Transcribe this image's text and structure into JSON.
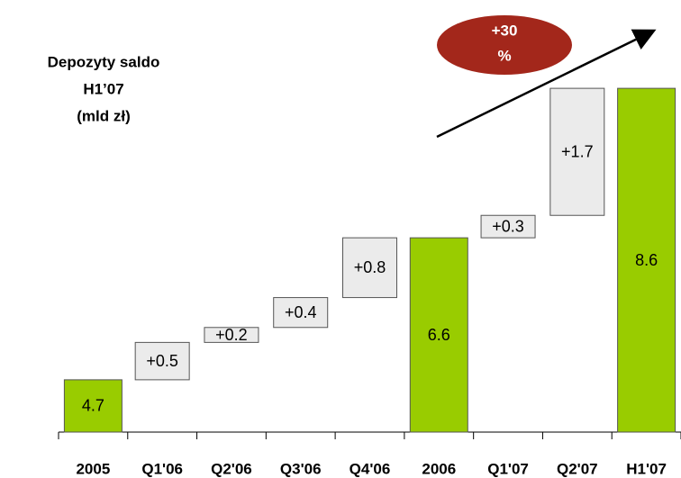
{
  "chart_data": {
    "type": "waterfall",
    "title": [
      "Depozyty saldo",
      "H1’07",
      "(mld zł)"
    ],
    "annotation": [
      "+30",
      "%"
    ],
    "categories": [
      "2005",
      "Q1'06",
      "Q2'06",
      "Q3'06",
      "Q4'06",
      "2006",
      "Q1'07",
      "Q2'07",
      "H1'07"
    ],
    "values": [
      4.7,
      0.5,
      0.2,
      0.4,
      0.8,
      6.6,
      0.3,
      1.7,
      8.6
    ],
    "value_labels": [
      "4.7",
      "+0.5",
      "+0.2",
      "+0.4",
      "+0.8",
      "6.6",
      "+0.3",
      "+1.7",
      "8.6"
    ],
    "is_total": [
      true,
      false,
      false,
      false,
      false,
      true,
      false,
      false,
      true
    ],
    "total_color": "#99cc00",
    "increment_color": "#ebebeb",
    "annotation_color": "#a3271b",
    "ylim": [
      4,
      9.3
    ]
  }
}
